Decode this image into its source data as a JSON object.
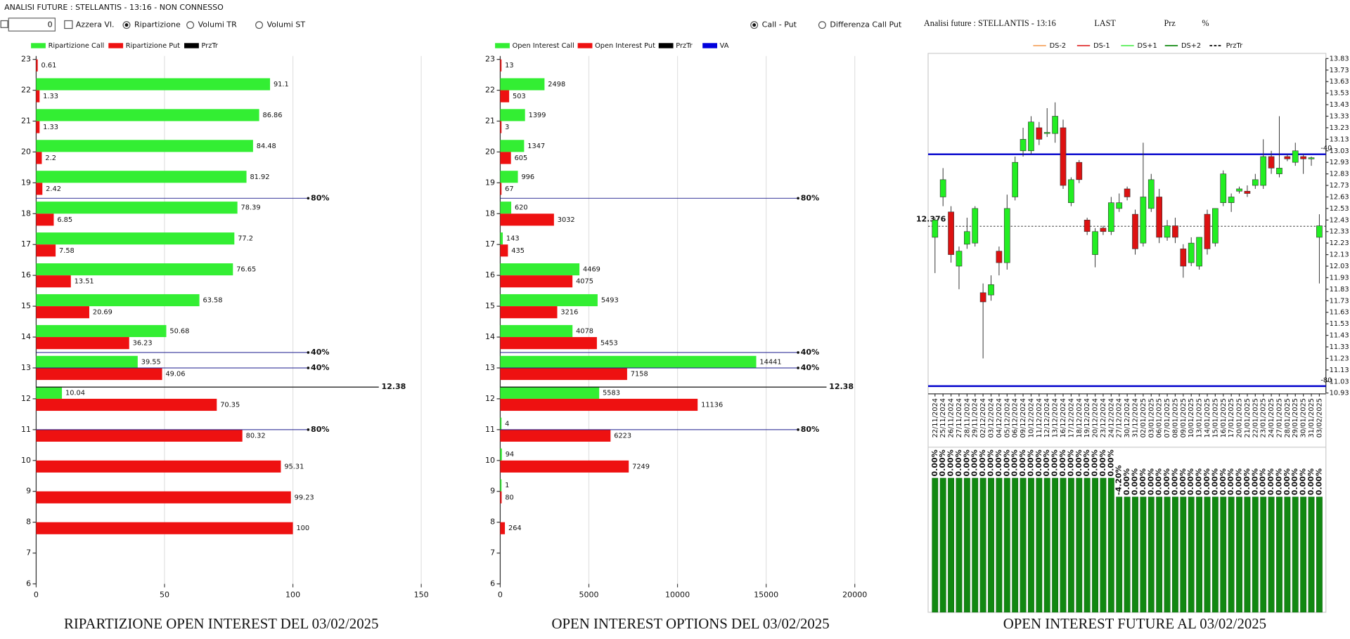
{
  "header": {
    "title": "ANALISI FUTURE : STELLANTIS - 13:16 - NON CONNESSO",
    "input_value": "0",
    "reset": "Azzera Vl.",
    "mode_options": [
      "Ripartizione",
      "Volumi TR",
      "Volumi ST"
    ],
    "mode_selected": 0,
    "view_options": [
      "Call - Put",
      "Differenza Call Put"
    ],
    "view_selected": 0,
    "future_title": "Analisi future : STELLANTIS - 13:16",
    "future_columns": [
      "LAST",
      "Prz",
      "%"
    ]
  },
  "chart_data": [
    {
      "type": "hbar",
      "title": "RIPARTIZIONE OPEN INTEREST DEL 03/02/2025",
      "y": [
        23,
        22,
        21,
        20,
        19,
        18,
        17,
        16,
        15,
        14,
        13,
        12,
        11,
        10,
        9,
        8
      ],
      "series": [
        {
          "name": "Ripartizione Call",
          "color": "#33ee33",
          "values": [
            null,
            91.1,
            86.86,
            84.48,
            81.92,
            78.39,
            77.2,
            76.65,
            63.58,
            50.68,
            39.55,
            10.04,
            null,
            null,
            null,
            null
          ]
        },
        {
          "name": "Ripartizione Put",
          "color": "#ee1111",
          "values": [
            0.61,
            1.33,
            1.33,
            2.2,
            2.42,
            6.85,
            7.58,
            13.51,
            20.69,
            36.23,
            49.06,
            70.35,
            80.32,
            95.31,
            99.23,
            100
          ]
        }
      ],
      "legend_extra": [
        {
          "name": "PrzTr",
          "color": "#000000"
        }
      ],
      "xlim": [
        0,
        166
      ],
      "xticks": [
        0,
        50,
        100,
        150
      ],
      "ylim": [
        6,
        23
      ],
      "yticks": [
        6,
        7,
        8,
        9,
        10,
        11,
        12,
        13,
        14,
        15,
        16,
        17,
        18,
        19,
        20,
        21,
        22,
        23
      ],
      "percent_levels": [
        {
          "value": 18.5,
          "label": "80%"
        },
        {
          "value": 13.5,
          "label": "40%"
        },
        {
          "value": 13,
          "label": "40%"
        },
        {
          "value": 11,
          "label": "80%"
        }
      ],
      "price_level": 12.38
    },
    {
      "type": "hbar",
      "title": "OPEN INTEREST OPTIONS DEL 03/02/2025",
      "y": [
        23,
        22,
        21,
        20,
        19,
        18,
        17,
        16,
        15,
        14,
        13,
        12,
        11,
        10,
        9,
        8
      ],
      "series": [
        {
          "name": "Open Interest Call",
          "color": "#33ee33",
          "values": [
            null,
            2498,
            1399,
            1347,
            996,
            620,
            143,
            4469,
            5493,
            4078,
            14441,
            5583,
            4,
            94,
            1,
            null
          ]
        },
        {
          "name": "Open Interest Put",
          "color": "#ee1111",
          "values": [
            13,
            503,
            3,
            605,
            67,
            3032,
            435,
            4075,
            3216,
            5453,
            7158,
            11136,
            6223,
            7249,
            80,
            264
          ]
        }
      ],
      "legend_extra": [
        {
          "name": "PrzTr",
          "color": "#000000"
        },
        {
          "name": "VA",
          "color": "#0000dd"
        }
      ],
      "xlim": [
        0,
        22000
      ],
      "xticks": [
        0,
        5000,
        10000,
        15000,
        20000
      ],
      "ylim": [
        6,
        23
      ],
      "yticks": [
        6,
        7,
        8,
        9,
        10,
        11,
        12,
        13,
        14,
        15,
        16,
        17,
        18,
        19,
        20,
        21,
        22,
        23
      ],
      "percent_levels": [
        {
          "value": 18.5,
          "label": "80%"
        },
        {
          "value": 13.5,
          "label": "40%"
        },
        {
          "value": 13,
          "label": "40%"
        },
        {
          "value": 11,
          "label": "80%"
        }
      ],
      "price_level": 12.38
    },
    {
      "type": "candlestick",
      "title": "OPEN INTEREST FUTURE AL 03/02/2025",
      "x": [
        "22/11/2024",
        "25/11/2024",
        "26/11/2024",
        "27/11/2024",
        "28/11/2024",
        "29/11/2024",
        "02/12/2024",
        "03/12/2024",
        "04/12/2024",
        "05/12/2024",
        "06/12/2024",
        "09/12/2024",
        "10/12/2024",
        "11/12/2024",
        "12/12/2024",
        "13/12/2024",
        "16/12/2024",
        "17/12/2024",
        "18/12/2024",
        "19/12/2024",
        "20/12/2024",
        "23/12/2024",
        "24/12/2024",
        "27/12/2024",
        "30/12/2024",
        "31/12/2024",
        "02/01/2025",
        "03/01/2025",
        "06/01/2025",
        "07/01/2025",
        "08/01/2025",
        "09/01/2025",
        "10/01/2025",
        "13/01/2025",
        "14/01/2025",
        "15/01/2025",
        "16/01/2025",
        "17/01/2025",
        "20/01/2025",
        "21/01/2025",
        "22/01/2025",
        "23/01/2025",
        "24/01/2025",
        "27/01/2025",
        "28/01/2025",
        "29/01/2025",
        "30/01/2025",
        "31/01/2025",
        "03/02/2025"
      ],
      "open": [
        12.28,
        12.63,
        12.5,
        12.03,
        12.22,
        12.23,
        11.8,
        11.78,
        12.16,
        12.06,
        12.63,
        13.03,
        13.03,
        13.23,
        13.18,
        13.18,
        13.23,
        12.58,
        12.93,
        12.43,
        12.13,
        12.36,
        12.33,
        12.53,
        12.7,
        12.48,
        12.23,
        12.53,
        12.63,
        12.28,
        12.38,
        12.18,
        12.06,
        12.03,
        12.48,
        12.23,
        12.58,
        12.58,
        12.68,
        12.68,
        12.73,
        12.73,
        12.98,
        12.83,
        12.98,
        12.93,
        12.98,
        12.96,
        12.28
      ],
      "high": [
        12.45,
        12.88,
        12.55,
        12.2,
        12.45,
        12.55,
        11.88,
        11.95,
        12.2,
        12.65,
        12.98,
        13.23,
        13.33,
        13.28,
        13.4,
        13.45,
        13.3,
        12.8,
        12.95,
        12.45,
        12.36,
        12.38,
        12.63,
        12.66,
        12.72,
        12.52,
        13.1,
        12.83,
        12.7,
        12.43,
        12.45,
        12.22,
        12.28,
        12.28,
        12.52,
        12.53,
        12.86,
        12.66,
        12.72,
        12.73,
        12.83,
        13.13,
        13.03,
        13.33,
        13.0,
        13.1,
        13.0,
        12.98,
        12.48
      ],
      "low": [
        11.97,
        12.55,
        12.06,
        11.83,
        12.18,
        12.2,
        11.23,
        11.73,
        11.95,
        12.0,
        12.6,
        12.98,
        13.0,
        13.08,
        13.15,
        13.1,
        12.7,
        12.55,
        12.75,
        12.3,
        12.02,
        12.3,
        12.3,
        12.5,
        12.6,
        12.13,
        12.2,
        12.5,
        12.23,
        12.25,
        12.23,
        11.93,
        12.03,
        12.0,
        12.13,
        12.2,
        12.55,
        12.5,
        12.66,
        12.63,
        12.7,
        12.7,
        12.83,
        12.8,
        12.94,
        12.9,
        12.83,
        12.9,
        11.88
      ],
      "close": [
        12.43,
        12.78,
        12.13,
        12.16,
        12.33,
        12.53,
        11.72,
        11.87,
        12.06,
        12.53,
        12.93,
        13.13,
        13.28,
        13.13,
        13.19,
        13.33,
        12.73,
        12.78,
        12.78,
        12.33,
        12.33,
        12.33,
        12.58,
        12.58,
        12.63,
        12.18,
        12.63,
        12.78,
        12.28,
        12.38,
        12.28,
        12.03,
        12.23,
        12.28,
        12.18,
        12.53,
        12.83,
        12.63,
        12.7,
        12.66,
        12.78,
        12.98,
        12.88,
        12.88,
        12.96,
        13.03,
        12.96,
        12.97,
        12.38
      ],
      "up_color": "#22ee22",
      "down_color": "#dd1111",
      "ylim": [
        10.93,
        13.83
      ],
      "yticks": [
        10.93,
        11.03,
        11.13,
        11.23,
        11.33,
        11.43,
        11.53,
        11.63,
        11.73,
        11.83,
        11.93,
        12.03,
        12.13,
        12.23,
        12.33,
        12.43,
        12.53,
        12.63,
        12.73,
        12.83,
        12.93,
        13.03,
        13.13,
        13.23,
        13.33,
        13.43,
        13.53,
        13.63,
        13.73,
        13.83
      ],
      "legend": [
        {
          "name": "DS-2",
          "color": "#f4a460"
        },
        {
          "name": "DS-1",
          "color": "#e03030"
        },
        {
          "name": "DS+1",
          "color": "#55ee55"
        },
        {
          "name": "DS+2",
          "color": "#118811"
        },
        {
          "name": "PrzTr",
          "color": "#000000"
        }
      ],
      "price_line": 12.376,
      "bands": [
        {
          "value": 13.0,
          "label": "-40",
          "color": "#0000cc"
        },
        {
          "value": 10.99,
          "label": "-80",
          "color": "#0000cc"
        }
      ]
    },
    {
      "type": "bar",
      "color": "#118811",
      "values": [
        0,
        0,
        0,
        0,
        0,
        0,
        0,
        0,
        0,
        0,
        0,
        0,
        0,
        0,
        0,
        0,
        0,
        0,
        0,
        0,
        0,
        0,
        0,
        -4.2,
        0,
        0,
        0,
        0,
        0,
        0,
        0,
        0,
        0,
        0,
        0,
        0,
        0,
        0,
        0,
        0,
        0,
        0,
        0,
        0,
        0,
        0,
        0,
        0,
        0
      ],
      "value_labels": [
        "0.00%",
        "0.00%",
        "0.00%",
        "0.00%",
        "0.00%",
        "0.00%",
        "0.00%",
        "0.00%",
        "0.00%",
        "0.00%",
        "0.00%",
        "0.00%",
        "0.00%",
        "0.00%",
        "0.00%",
        "0.00%",
        "0.00%",
        "0.00%",
        "0.00%",
        "0.00%",
        "0.00%",
        "0.00%",
        "0.00%",
        "-4.20%",
        "0.00%",
        "0.00%",
        "0.00%",
        "0.00%",
        "0.00%",
        "0.00%",
        "0.00%",
        "0.00%",
        "0.00%",
        "0.00%",
        "0.00%",
        "0.00%",
        "0.00%",
        "0.00%",
        "0.00%",
        "0.00%",
        "0.00%",
        "0.00%",
        "0.00%",
        "0.00%",
        "0.00%",
        "0.00%",
        "0.00%",
        "0.00%",
        "0.00%"
      ],
      "bars": [
        100,
        100,
        100,
        100,
        100,
        100,
        100,
        100,
        100,
        100,
        100,
        100,
        100,
        100,
        100,
        100,
        100,
        100,
        100,
        100,
        100,
        100,
        100,
        86,
        86,
        86,
        86,
        86,
        86,
        86,
        86,
        86,
        86,
        86,
        86,
        86,
        86,
        86,
        86,
        86,
        86,
        86,
        86,
        86,
        86,
        86,
        86,
        86,
        86
      ],
      "ylim": [
        0,
        100
      ]
    }
  ]
}
